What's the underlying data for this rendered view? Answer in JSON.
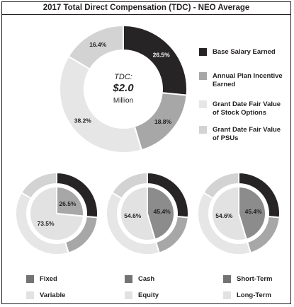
{
  "title": "2017 Total Direct Compensation (TDC) - NEO Average",
  "center": {
    "line1": "TDC:",
    "line2": "$2.0",
    "line3": "Million"
  },
  "colors": {
    "base": "#262425",
    "annual": "#a7a7a7",
    "options": "#e6e6e6",
    "psus": "#d3d3d3",
    "fixed_inner": "#a7a7a7",
    "variable_inner": "#e2e2e2",
    "equity_inner": "#e2e2e2"
  },
  "legend_main": [
    {
      "label": "Base Salary Earned",
      "color": "#262425"
    },
    {
      "label": "Annual Plan Incentive Earned",
      "color": "#a7a7a7"
    },
    {
      "label": "Grant Date Fair Value of Stock Options",
      "color": "#e6e6e6"
    },
    {
      "label": "Grant Date Fair Value of PSUs",
      "color": "#d3d3d3"
    }
  ],
  "legend_bottom": [
    {
      "label": "Fixed",
      "color": "#737373"
    },
    {
      "label": "Variable",
      "color": "#e2e2e2"
    },
    {
      "label": "Cash",
      "color": "#737373"
    },
    {
      "label": "Equity",
      "color": "#e2e2e2"
    },
    {
      "label": "Short-Term",
      "color": "#737373"
    },
    {
      "label": "Long-Term",
      "color": "#e2e2e2"
    }
  ],
  "chart_data": [
    {
      "type": "pie",
      "title": "2017 Total Direct Compensation (TDC) - NEO Average",
      "categories": [
        "Base Salary Earned",
        "Annual Plan Incentive Earned",
        "Grant Date Fair Value of Stock Options",
        "Grant Date Fair Value of PSUs"
      ],
      "values": [
        26.5,
        18.8,
        38.2,
        16.4
      ],
      "labels": [
        "26.5%",
        "18.8%",
        "38.2%",
        "16.4%"
      ]
    },
    {
      "type": "pie",
      "categories": [
        "Fixed",
        "Variable"
      ],
      "values": [
        26.5,
        73.5
      ],
      "labels": [
        "26.5%",
        "73.5%"
      ]
    },
    {
      "type": "pie",
      "categories": [
        "Cash",
        "Equity"
      ],
      "values": [
        45.4,
        54.6
      ],
      "labels": [
        "45.4%",
        "54.6%"
      ]
    },
    {
      "type": "pie",
      "categories": [
        "Short-Term",
        "Long-Term"
      ],
      "values": [
        45.4,
        54.6
      ],
      "labels": [
        "45.4%",
        "54.6%"
      ]
    }
  ]
}
